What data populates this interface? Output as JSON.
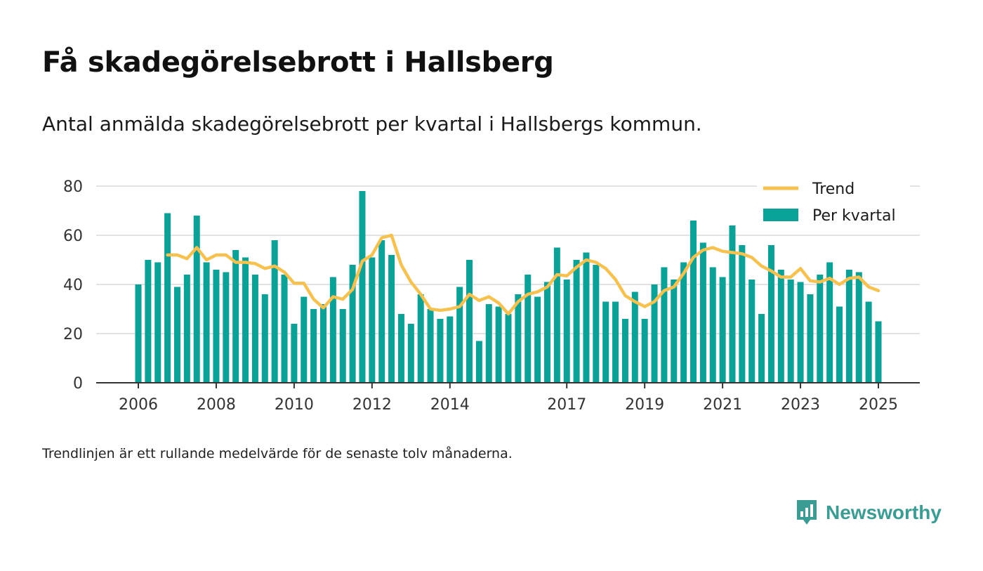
{
  "title": "Få skadegörelsebrott i Hallsberg",
  "subtitle": "Antal anmälda skadegörelsebrott per kvartal i Hallsbergs kommun.",
  "footnote": "Trendlinjen är ett rullande medelvärde för de senaste tolv månaderna.",
  "brand": {
    "name": "Newsworthy",
    "icon": "newsworthy-logo-icon"
  },
  "colors": {
    "bar": "#0aa197",
    "trend": "#f7c14f",
    "grid": "#d9d9d9",
    "axis": "#333333",
    "brand": "#3a9c92"
  },
  "chart_data": {
    "type": "bar",
    "x_unit": "quarter",
    "ylim": [
      0,
      80
    ],
    "yticks": [
      0,
      20,
      40,
      60,
      80
    ],
    "xticks": [
      "2006",
      "2008",
      "2010",
      "2012",
      "2014",
      "2017",
      "2019",
      "2021",
      "2023",
      "2025"
    ],
    "xtick_positions": [
      "2006-Q1",
      "2008-Q1",
      "2010-Q1",
      "2012-Q1",
      "2014-Q1",
      "2017-Q1",
      "2019-Q1",
      "2021-Q1",
      "2023-Q1",
      "2025-Q1"
    ],
    "grid": true,
    "legend_position": "top-right",
    "series": [
      {
        "name": "Per kvartal",
        "type": "bar",
        "start": "2006-Q1",
        "values": [
          40,
          50,
          49,
          69,
          39,
          44,
          68,
          49,
          46,
          45,
          54,
          51,
          44,
          36,
          58,
          44,
          24,
          35,
          30,
          32,
          43,
          30,
          48,
          78,
          51,
          58,
          52,
          28,
          24,
          36,
          30,
          26,
          27,
          39,
          50,
          17,
          32,
          31,
          28,
          36,
          44,
          35,
          41,
          55,
          42,
          50,
          53,
          48,
          33,
          33,
          26,
          37,
          26,
          40,
          47,
          42,
          49,
          66,
          57,
          47,
          43,
          64,
          56,
          42,
          28,
          56,
          46,
          42,
          41,
          36,
          44,
          49,
          31,
          46,
          45,
          33,
          25
        ]
      },
      {
        "name": "Trend",
        "type": "line",
        "start": "2006-Q4",
        "values": [
          52,
          52,
          50.5,
          55,
          50,
          52,
          52,
          49,
          49,
          48.5,
          46.5,
          47.5,
          45,
          40.5,
          40.5,
          34,
          30.5,
          35,
          34,
          38,
          49.5,
          52,
          59,
          60,
          48,
          41,
          36,
          30,
          29.5,
          30,
          31,
          36,
          33.5,
          35,
          32.5,
          28,
          33,
          36,
          37,
          39,
          44,
          43.5,
          47,
          50,
          49,
          46.5,
          42,
          35.5,
          33,
          31,
          33,
          37.5,
          39,
          44.5,
          51,
          54,
          55,
          53.5,
          53,
          52.5,
          51,
          47.5,
          45.5,
          43,
          43,
          46.5,
          41.5,
          41,
          42.5,
          40,
          42.5,
          43,
          39,
          37.5
        ]
      }
    ]
  }
}
